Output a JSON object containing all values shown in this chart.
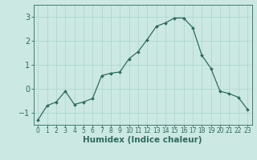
{
  "x": [
    0,
    1,
    2,
    3,
    4,
    5,
    6,
    7,
    8,
    9,
    10,
    11,
    12,
    13,
    14,
    15,
    16,
    17,
    18,
    19,
    20,
    21,
    22,
    23
  ],
  "y": [
    -1.3,
    -0.7,
    -0.55,
    -0.1,
    -0.65,
    -0.55,
    -0.4,
    0.55,
    0.65,
    0.7,
    1.25,
    1.55,
    2.05,
    2.6,
    2.75,
    2.95,
    2.95,
    2.55,
    1.4,
    0.85,
    -0.1,
    -0.2,
    -0.35,
    -0.85
  ],
  "xlabel": "Humidex (Indice chaleur)",
  "xlim": [
    -0.5,
    23.5
  ],
  "ylim": [
    -1.5,
    3.5
  ],
  "yticks": [
    -1,
    0,
    1,
    2,
    3
  ],
  "xticks": [
    0,
    1,
    2,
    3,
    4,
    5,
    6,
    7,
    8,
    9,
    10,
    11,
    12,
    13,
    14,
    15,
    16,
    17,
    18,
    19,
    20,
    21,
    22,
    23
  ],
  "line_color": "#2e6b5e",
  "marker": "D",
  "marker_size": 2.0,
  "bg_color": "#cce8e3",
  "grid_color": "#b0d8d2",
  "axis_color": "#2e6b5e",
  "tick_color": "#2e6b5e",
  "label_color": "#2e6b5e",
  "xlabel_fontsize": 7.5,
  "xlabel_fontweight": "bold",
  "ytick_fontsize": 7.0,
  "xtick_fontsize": 5.5
}
